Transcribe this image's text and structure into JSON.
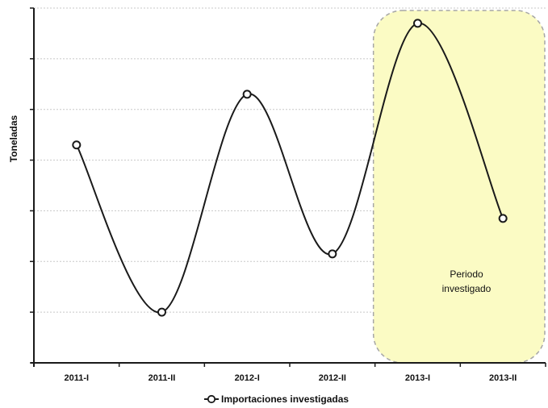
{
  "chart_data": {
    "type": "line",
    "categories": [
      "2011-I",
      "2011-II",
      "2012-I",
      "2012-II",
      "2013-I",
      "2013-II"
    ],
    "series": [
      {
        "name": "Importaciones investigadas",
        "values": [
          4.3,
          1.0,
          5.3,
          2.15,
          6.7,
          2.85
        ],
        "color": "#1a1a1a"
      }
    ],
    "ylabel": "Toneladas",
    "ylim": [
      0,
      7
    ],
    "y_tick_labels_shown": false,
    "grid": "horizontal-dotted",
    "legend_position": "bottom",
    "highlight": {
      "label_line1": "Periodo",
      "label_line2": "investigado",
      "from_category": "2013-I",
      "to_category": "2013-II",
      "fill": "#fbfbc4",
      "border": "#a6a6a6"
    }
  }
}
